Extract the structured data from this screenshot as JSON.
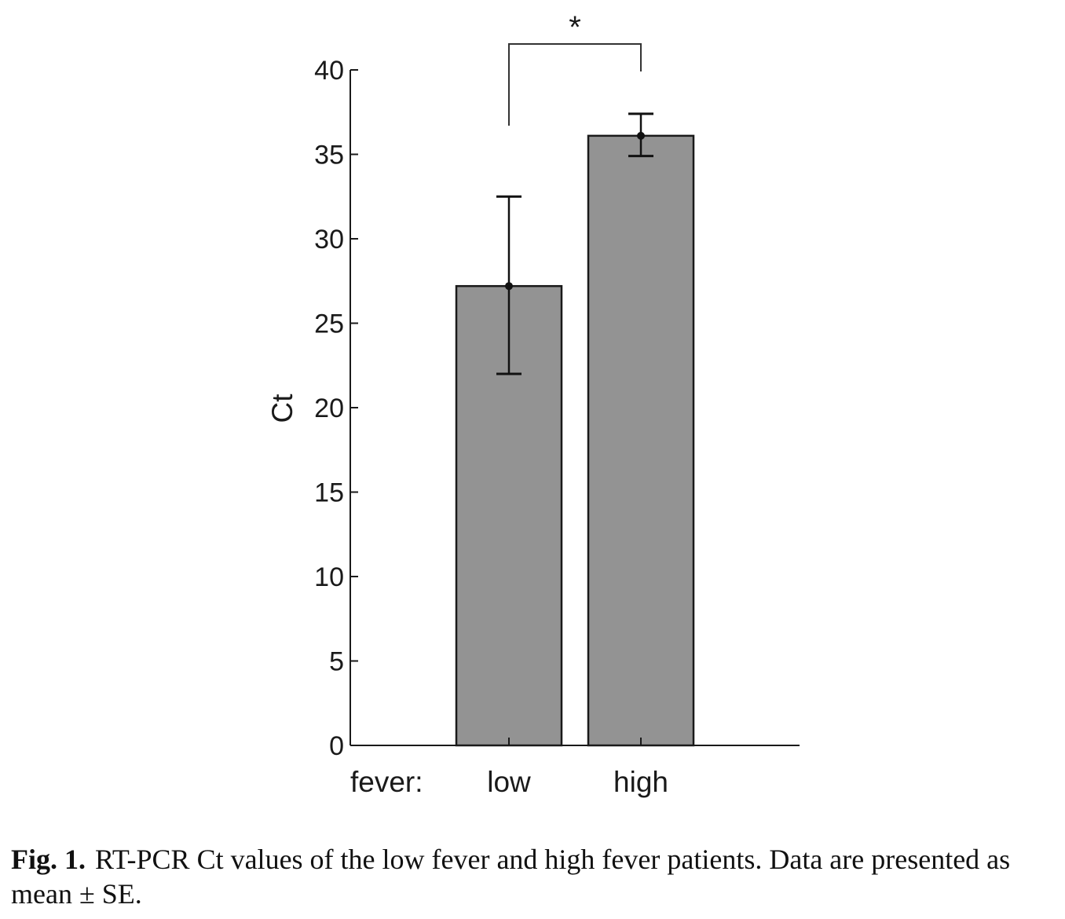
{
  "chart_data": {
    "type": "bar",
    "categories": [
      "low",
      "high"
    ],
    "category_axis_name": "fever:",
    "values": [
      27.2,
      36.1
    ],
    "error": [
      {
        "lower": 22.0,
        "upper": 32.5
      },
      {
        "lower": 34.9,
        "upper": 37.4
      }
    ],
    "ylabel": "Ct",
    "xlabel": "",
    "ylim": [
      0,
      40
    ],
    "yticks": [
      0,
      5,
      10,
      15,
      20,
      25,
      30,
      35,
      40
    ],
    "grid": false,
    "bar_color": "#939393",
    "edge_color": "#1a1a1a",
    "significance": {
      "between": [
        "low",
        "high"
      ],
      "label": "*"
    }
  },
  "caption": {
    "label": "Fig. 1.",
    "text": "RT-PCR Ct values of the low fever and high fever patients. Data are presented as mean ± SE."
  }
}
